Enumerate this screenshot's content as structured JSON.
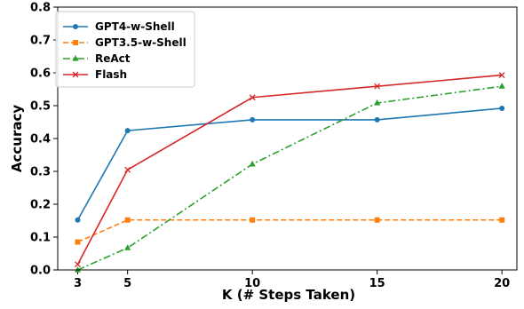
{
  "chart_data": {
    "type": "line",
    "xlabel": "K (# Steps Taken)",
    "ylabel": "Accuracy",
    "x": [
      3,
      5,
      10,
      15,
      20
    ],
    "xticks": [
      3,
      5,
      10,
      15,
      20
    ],
    "xlim": [
      2.2,
      20.6
    ],
    "ylim": [
      0.0,
      0.8
    ],
    "yticks": [
      0.0,
      0.1,
      0.2,
      0.3,
      0.4,
      0.5,
      0.6,
      0.7,
      0.8
    ],
    "ytick_labels": [
      "0.0",
      "0.1",
      "0.2",
      "0.3",
      "0.4",
      "0.5",
      "0.6",
      "0.7",
      "0.8"
    ],
    "grid": false,
    "legend_position": "top-left",
    "series": [
      {
        "name": "GPT4-w-Shell",
        "values": [
          0.152,
          0.424,
          0.457,
          0.457,
          0.492
        ],
        "color": "#1f77b4",
        "linestyle": "solid",
        "marker": "circle"
      },
      {
        "name": "GPT3.5-w-Shell",
        "values": [
          0.085,
          0.152,
          0.152,
          0.152,
          0.152
        ],
        "color": "#ff7f0e",
        "linestyle": "dashed",
        "marker": "square"
      },
      {
        "name": "ReAct",
        "values": [
          0.0,
          0.067,
          0.322,
          0.508,
          0.559
        ],
        "color": "#2ca02c",
        "linestyle": "dashdot",
        "marker": "triangle"
      },
      {
        "name": "Flash",
        "values": [
          0.017,
          0.305,
          0.525,
          0.559,
          0.593
        ],
        "color": "#d62728",
        "linestyle": "solid",
        "marker": "x"
      }
    ]
  }
}
